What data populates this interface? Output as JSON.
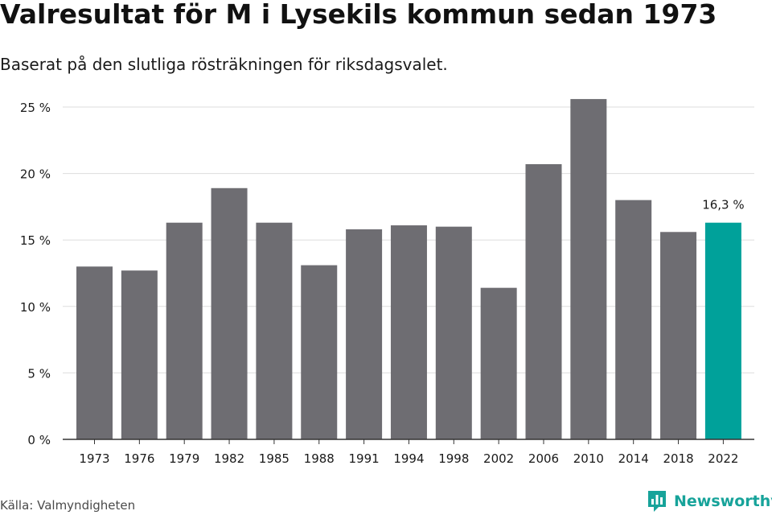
{
  "header": {
    "title": "Valresultat för M i Lysekils kommun sedan 1973",
    "subtitle": "Baserat på den slutliga rösträkningen för riksdagsvalet."
  },
  "footer": {
    "source": "Källa: Valmyndigheten",
    "brand": "Newsworthy"
  },
  "colors": {
    "bar": "#6e6d72",
    "highlight": "#00a19a",
    "grid": "#dddddd",
    "axis": "#333333",
    "text": "#1a1a1a",
    "brand": "#17a39a"
  },
  "chart_data": {
    "type": "bar",
    "title": "Valresultat för M i Lysekils kommun sedan 1973",
    "subtitle": "Baserat på den slutliga rösträkningen för riksdagsvalet.",
    "xlabel": "",
    "ylabel": "",
    "categories": [
      "1973",
      "1976",
      "1979",
      "1982",
      "1985",
      "1988",
      "1991",
      "1994",
      "1998",
      "2002",
      "2006",
      "2010",
      "2014",
      "2018",
      "2022"
    ],
    "values": [
      13.0,
      12.7,
      16.3,
      18.9,
      16.3,
      13.1,
      15.8,
      16.1,
      16.0,
      11.4,
      20.7,
      25.6,
      18.0,
      15.6,
      16.3
    ],
    "ylim": [
      0,
      25
    ],
    "yticks": [
      0,
      5,
      10,
      15,
      20,
      25
    ],
    "ytick_labels": [
      "0 %",
      "5 %",
      "10 %",
      "15 %",
      "20 %",
      "25 %"
    ],
    "grid": true,
    "highlight_index": 14,
    "annotations": [
      {
        "category": "2022",
        "text": "16,3 %"
      }
    ]
  }
}
